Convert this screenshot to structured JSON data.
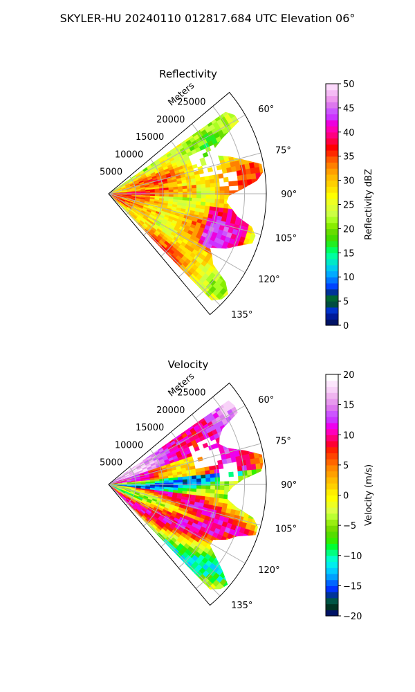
{
  "figure": {
    "suptitle": "SKYLER-HU  20240110  012817.684 UTC Elevation 06°"
  },
  "chart_data": [
    {
      "type": "heatmap",
      "subtype": "polar-sector radar PPI",
      "title": "Reflectivity",
      "range_label": "Meters",
      "range_ticks": [
        "5000",
        "10000",
        "15000",
        "20000",
        "25000"
      ],
      "range_values": [
        5000,
        10000,
        15000,
        20000,
        25000
      ],
      "rmax": 29000,
      "azimuth_ticks": [
        "60°",
        "75°",
        "90°",
        "105°",
        "120°",
        "135°"
      ],
      "azimuth_values": [
        60,
        75,
        90,
        105,
        120,
        135
      ],
      "sector_deg": [
        50,
        140
      ],
      "grid": true,
      "colorbar": {
        "label": "Reflectivity dBZ",
        "min": 0,
        "max": 50,
        "ticks": [
          "0",
          "5",
          "10",
          "15",
          "20",
          "25",
          "30",
          "35",
          "40",
          "45",
          "50"
        ],
        "tick_values": [
          0,
          5,
          10,
          15,
          20,
          25,
          30,
          35,
          40,
          45,
          50
        ],
        "colors": [
          "#001366",
          "#001a99",
          "#0033cc",
          "#004d40",
          "#006633",
          "#003399",
          "#0044ff",
          "#0077ff",
          "#00aaff",
          "#00ccee",
          "#00e8c8",
          "#00ffa0",
          "#00ff60",
          "#22ee22",
          "#44dd00",
          "#66dd00",
          "#88ee00",
          "#aaff22",
          "#ccff44",
          "#ddff33",
          "#eeff22",
          "#ffff00",
          "#ffe600",
          "#ffd000",
          "#ffbb00",
          "#ff9f00",
          "#ff8000",
          "#ff5a00",
          "#ff2a00",
          "#ff0000",
          "#ff0040",
          "#ff0080",
          "#ff00b0",
          "#ee00dd",
          "#cc33ff",
          "#cc55ff",
          "#dd77ee",
          "#ee99ee",
          "#f5bbf5",
          "#fcd9fc"
        ]
      },
      "field_summary": "mostly 25-35 dBZ with red 35-40 bands; green 15-22 dBZ toward north-east, magenta cores up to ~45 near 100-115° azimuth"
    },
    {
      "type": "heatmap",
      "subtype": "polar-sector radar PPI",
      "title": "Velocity",
      "range_label": "Meters",
      "range_ticks": [
        "5000",
        "10000",
        "15000",
        "20000",
        "25000"
      ],
      "range_values": [
        5000,
        10000,
        15000,
        20000,
        25000
      ],
      "rmax": 29000,
      "azimuth_ticks": [
        "60°",
        "75°",
        "90°",
        "105°",
        "120°",
        "135°"
      ],
      "azimuth_values": [
        60,
        75,
        90,
        105,
        120,
        135
      ],
      "sector_deg": [
        50,
        140
      ],
      "grid": true,
      "colorbar": {
        "label": "Velocity (m/s)",
        "min": -20,
        "max": 20,
        "ticks": [
          "−20",
          "−15",
          "−10",
          "−5",
          "0",
          "5",
          "10",
          "15",
          "20"
        ],
        "tick_values": [
          -20,
          -15,
          -10,
          -5,
          0,
          5,
          10,
          15,
          20
        ],
        "colors": [
          "#001366",
          "#003322",
          "#005544",
          "#003399",
          "#0033ff",
          "#0066ff",
          "#00a0ff",
          "#00ccff",
          "#00eeee",
          "#00ffcc",
          "#00ff80",
          "#00ff33",
          "#33ee00",
          "#55dd00",
          "#77dd00",
          "#99ee11",
          "#bbff33",
          "#ddff44",
          "#eeff22",
          "#ffff00",
          "#ffee00",
          "#ffd000",
          "#ffbb00",
          "#ffa000",
          "#ff8800",
          "#ff6600",
          "#ff4400",
          "#ff2200",
          "#ff0033",
          "#ff0077",
          "#ff00bb",
          "#ee00ee",
          "#cc33ff",
          "#cc55ff",
          "#dd77ee",
          "#e799ee",
          "#f0b5f0",
          "#f8d2f8",
          "#fce6fc",
          "#ffffff"
        ]
      },
      "field_summary": "bands from magenta (+15) near north-east edge to yellow/red (0 to +10) and cyan/green (-15 to -5) near 90-100° azimuth"
    }
  ]
}
